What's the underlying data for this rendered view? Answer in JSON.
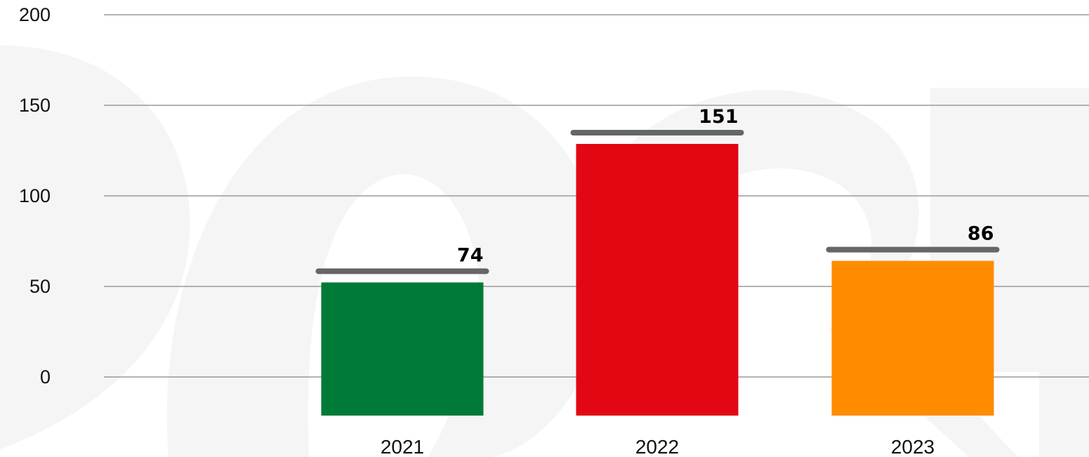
{
  "chart_data": {
    "type": "bar",
    "categories": [
      "2021",
      "2022",
      "2023"
    ],
    "values": [
      74,
      151,
      86
    ],
    "bar_colors": [
      "#007a37",
      "#e30613",
      "#ff8c00"
    ],
    "marker_color": "#666666",
    "ylim": [
      0,
      200
    ],
    "yticks": [
      "0",
      "50",
      "100",
      "150",
      "200"
    ],
    "grid": true,
    "legend": "none",
    "title": "",
    "xlabel": "",
    "ylabel": ""
  }
}
